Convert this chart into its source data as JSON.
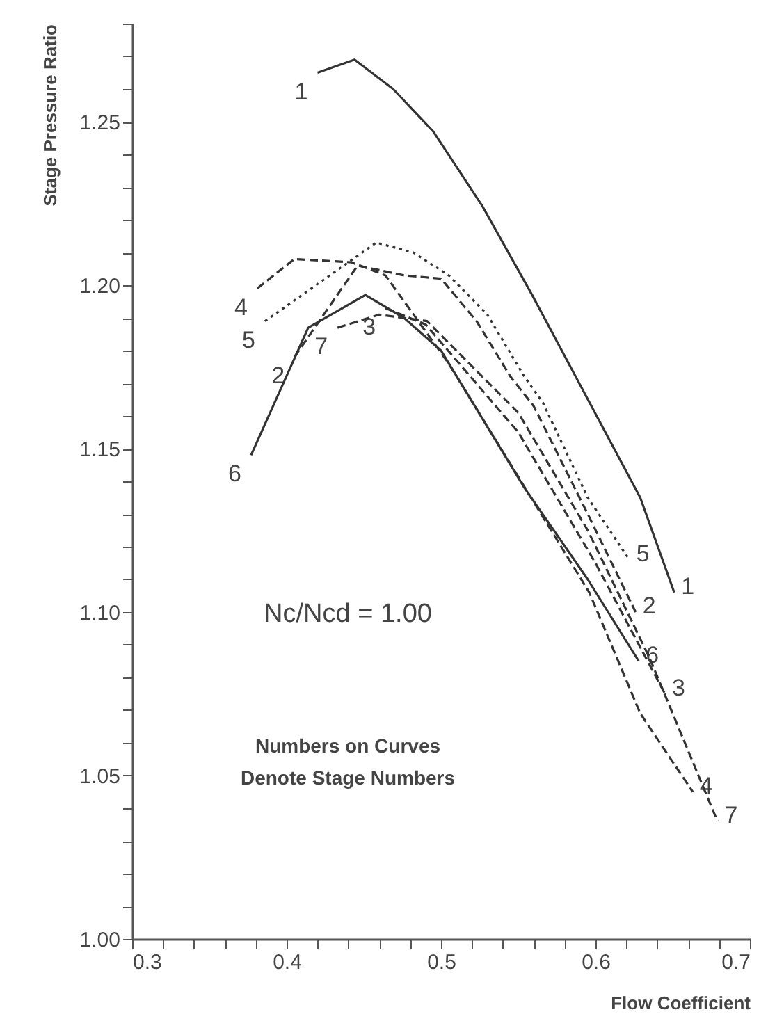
{
  "chart_data": {
    "type": "line",
    "xlabel": "Flow Coefficient",
    "ylabel": "Stage Pressure Ratio",
    "xlim": [
      0.3,
      0.7
    ],
    "ylim": [
      1.0,
      1.28
    ],
    "xticks": [
      0.3,
      {
        "value": 0.32,
        "label": null
      },
      {
        "value": 0.34,
        "label": null
      },
      {
        "value": 0.36,
        "label": null
      },
      {
        "value": 0.38,
        "label": null
      },
      0.4,
      {
        "value": 0.42,
        "label": null
      },
      {
        "value": 0.44,
        "label": null
      },
      {
        "value": 0.46,
        "label": null
      },
      {
        "value": 0.48,
        "label": null
      },
      0.5,
      {
        "value": 0.52,
        "label": null
      },
      {
        "value": 0.54,
        "label": null
      },
      {
        "value": 0.56,
        "label": null
      },
      {
        "value": 0.58,
        "label": null
      },
      0.6,
      {
        "value": 0.62,
        "label": null
      },
      {
        "value": 0.64,
        "label": null
      },
      {
        "value": 0.66,
        "label": null
      },
      {
        "value": 0.68,
        "label": null
      },
      0.7
    ],
    "yticks": [
      {
        "value": 1.0,
        "label": "1.00"
      },
      {
        "value": 1.01,
        "label": null
      },
      {
        "value": 1.02,
        "label": null
      },
      {
        "value": 1.03,
        "label": null
      },
      {
        "value": 1.04,
        "label": null
      },
      1.05,
      {
        "value": 1.06,
        "label": null
      },
      {
        "value": 1.07,
        "label": null
      },
      {
        "value": 1.08,
        "label": null
      },
      {
        "value": 1.09,
        "label": null
      },
      {
        "value": 1.1,
        "label": "1.10"
      },
      {
        "value": 1.11,
        "label": null
      },
      {
        "value": 1.12,
        "label": null
      },
      {
        "value": 1.13,
        "label": null
      },
      {
        "value": 1.14,
        "label": null
      },
      1.15,
      {
        "value": 1.16,
        "label": null
      },
      {
        "value": 1.17,
        "label": null
      },
      {
        "value": 1.18,
        "label": null
      },
      {
        "value": 1.19,
        "label": null
      },
      {
        "value": 1.2,
        "label": "1.20"
      },
      {
        "value": 1.21,
        "label": null
      },
      {
        "value": 1.22,
        "label": null
      },
      {
        "value": 1.23,
        "label": null
      },
      {
        "value": 1.24,
        "label": null
      },
      1.25,
      {
        "value": 1.26,
        "label": null
      },
      {
        "value": 1.27,
        "label": null
      },
      {
        "value": 1.28,
        "label": null
      }
    ],
    "grid": false,
    "marker": "none",
    "annotations": [
      "Nc/Ncd = 1.00",
      "Numbers on Curves\nDenote Stage Numbers"
    ],
    "series": [
      {
        "name": "1",
        "color": "#333333",
        "line_style": "solid",
        "x": [
          0.42,
          0.444,
          0.469,
          0.495,
          0.527,
          0.559,
          0.629,
          0.651
        ],
        "values": [
          1.265,
          1.269,
          1.26,
          1.247,
          1.224,
          1.197,
          1.135,
          1.106
        ]
      },
      {
        "name": "2",
        "color": "#333333",
        "line_style": "dashed",
        "x": [
          0.405,
          0.446,
          0.476,
          0.5,
          0.523,
          0.545,
          0.56,
          0.595,
          0.626
        ],
        "values": [
          1.178,
          1.206,
          1.203,
          1.202,
          1.189,
          1.172,
          1.163,
          1.13,
          1.1
        ]
      },
      {
        "name": "3",
        "color": "#333333",
        "line_style": "dashed",
        "x": [
          0.464,
          0.49,
          0.55,
          0.6,
          0.645
        ],
        "values": [
          1.193,
          1.188,
          1.155,
          1.115,
          1.075
        ]
      },
      {
        "name": "4",
        "color": "#333333",
        "line_style": "dashed",
        "x": [
          0.381,
          0.405,
          0.442,
          0.464,
          0.505,
          0.557,
          0.596,
          0.629,
          0.663
        ],
        "values": [
          1.199,
          1.208,
          1.207,
          1.203,
          1.176,
          1.136,
          1.106,
          1.069,
          1.045
        ]
      },
      {
        "name": "5",
        "color": "#333333",
        "line_style": "dotted",
        "x": [
          0.386,
          0.458,
          0.482,
          0.505,
          0.53,
          0.554,
          0.566,
          0.595,
          0.622
        ],
        "values": [
          1.189,
          1.213,
          1.21,
          1.203,
          1.191,
          1.172,
          1.164,
          1.135,
          1.116
        ]
      },
      {
        "name": "6",
        "color": "#333333",
        "line_style": "solid",
        "x": [
          0.377,
          0.414,
          0.451,
          0.476,
          0.5,
          0.554,
          0.595,
          0.628
        ],
        "values": [
          1.148,
          1.187,
          1.197,
          1.19,
          1.18,
          1.138,
          1.11,
          1.085
        ]
      },
      {
        "name": "7",
        "color": "#333333",
        "line_style": "dashed",
        "x": [
          0.433,
          0.46,
          0.491,
          0.55,
          0.595,
          0.635,
          0.679
        ],
        "values": [
          1.187,
          1.191,
          1.189,
          1.161,
          1.125,
          1.086,
          1.036
        ]
      }
    ]
  }
}
